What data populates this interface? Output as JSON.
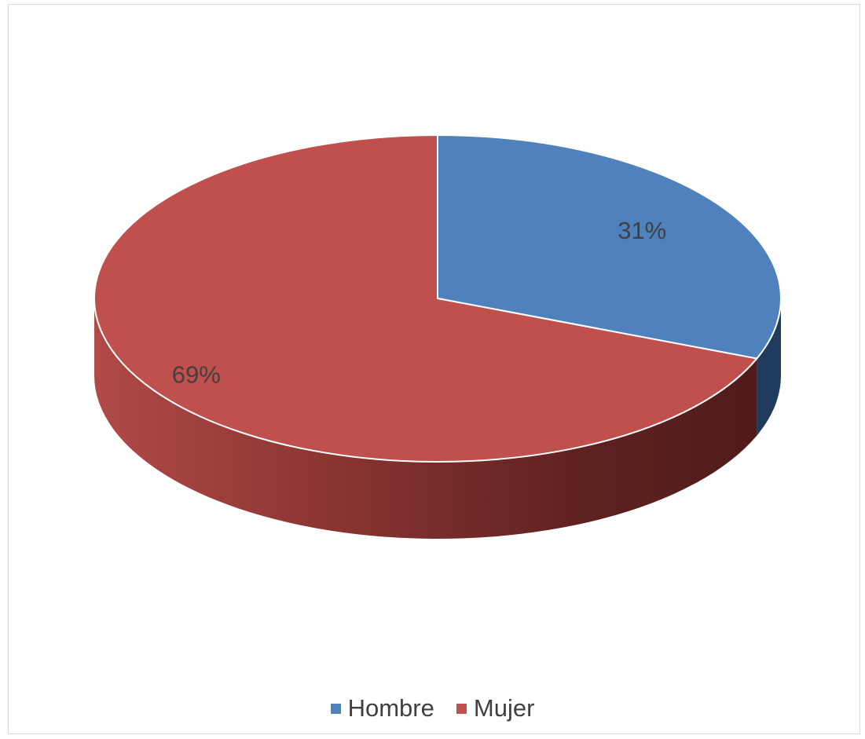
{
  "chart_data": {
    "type": "pie",
    "style": "3d",
    "categories": [
      "Hombre",
      "Mujer"
    ],
    "values": [
      31,
      69
    ],
    "data_labels": [
      "31%",
      "69%"
    ],
    "colors": [
      "#4f81bd",
      "#c0504d"
    ],
    "side_colors": [
      "#1f3b5e",
      "#511b1a"
    ],
    "legend": {
      "position": "bottom",
      "entries": [
        "Hombre",
        "Mujer"
      ]
    }
  }
}
